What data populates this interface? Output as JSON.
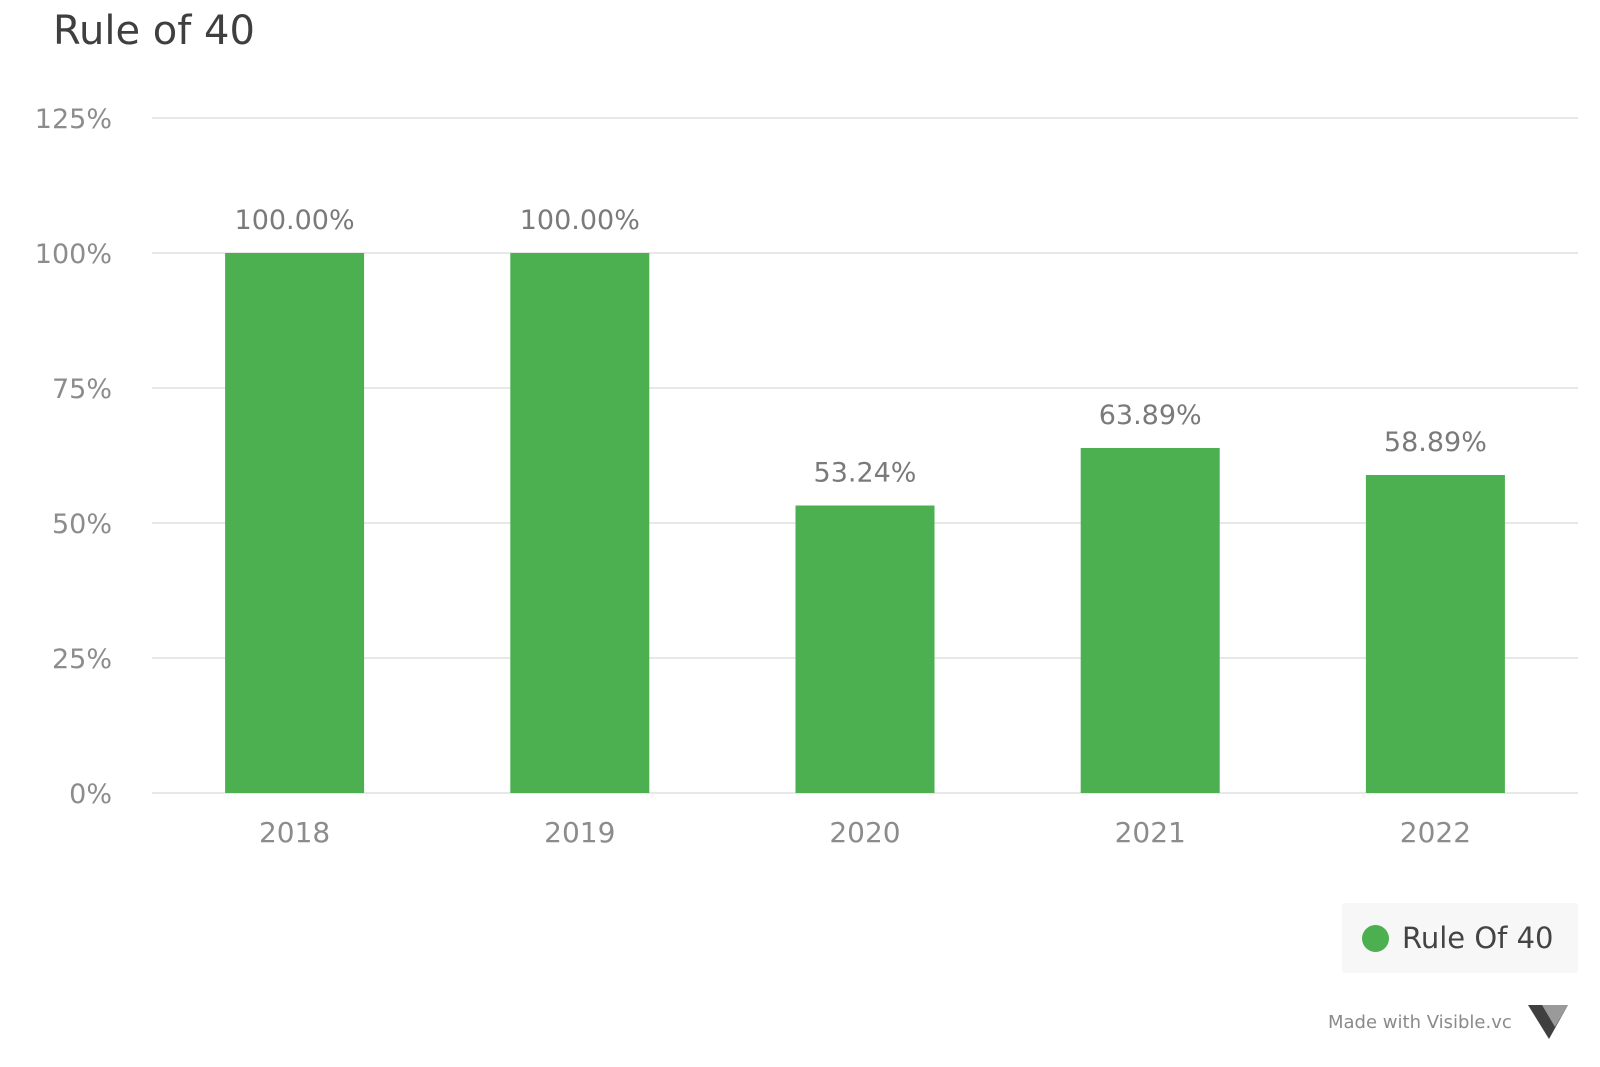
{
  "chart_data": {
    "type": "bar",
    "title": "Rule of 40",
    "xlabel": "",
    "ylabel": "",
    "categories": [
      "2018",
      "2019",
      "2020",
      "2021",
      "2022"
    ],
    "series": [
      {
        "name": "Rule Of 40",
        "values": [
          100.0,
          100.0,
          53.24,
          63.89,
          58.89
        ],
        "data_labels": [
          "100.00%",
          "100.00%",
          "53.24%",
          "63.89%",
          "58.89%"
        ],
        "color": "#4caf50"
      }
    ],
    "ylim": [
      0,
      125
    ],
    "y_ticks": [
      0,
      25,
      50,
      75,
      100,
      125
    ],
    "y_tick_labels": [
      "0%",
      "25%",
      "50%",
      "75%",
      "100%",
      "125%"
    ],
    "grid": true,
    "legend_position": "bottom-right"
  },
  "legend": {
    "label": "Rule Of 40",
    "color": "#4caf50"
  },
  "footer": {
    "text": "Made with Visible.vc",
    "logo_icon": "visible-logo-icon"
  },
  "colors": {
    "bar": "#4caf50",
    "grid": "#e8e8e8",
    "axis_text": "#8c8c8c",
    "data_label_text": "#7a7a7a",
    "title_text": "#3f3f3f"
  }
}
